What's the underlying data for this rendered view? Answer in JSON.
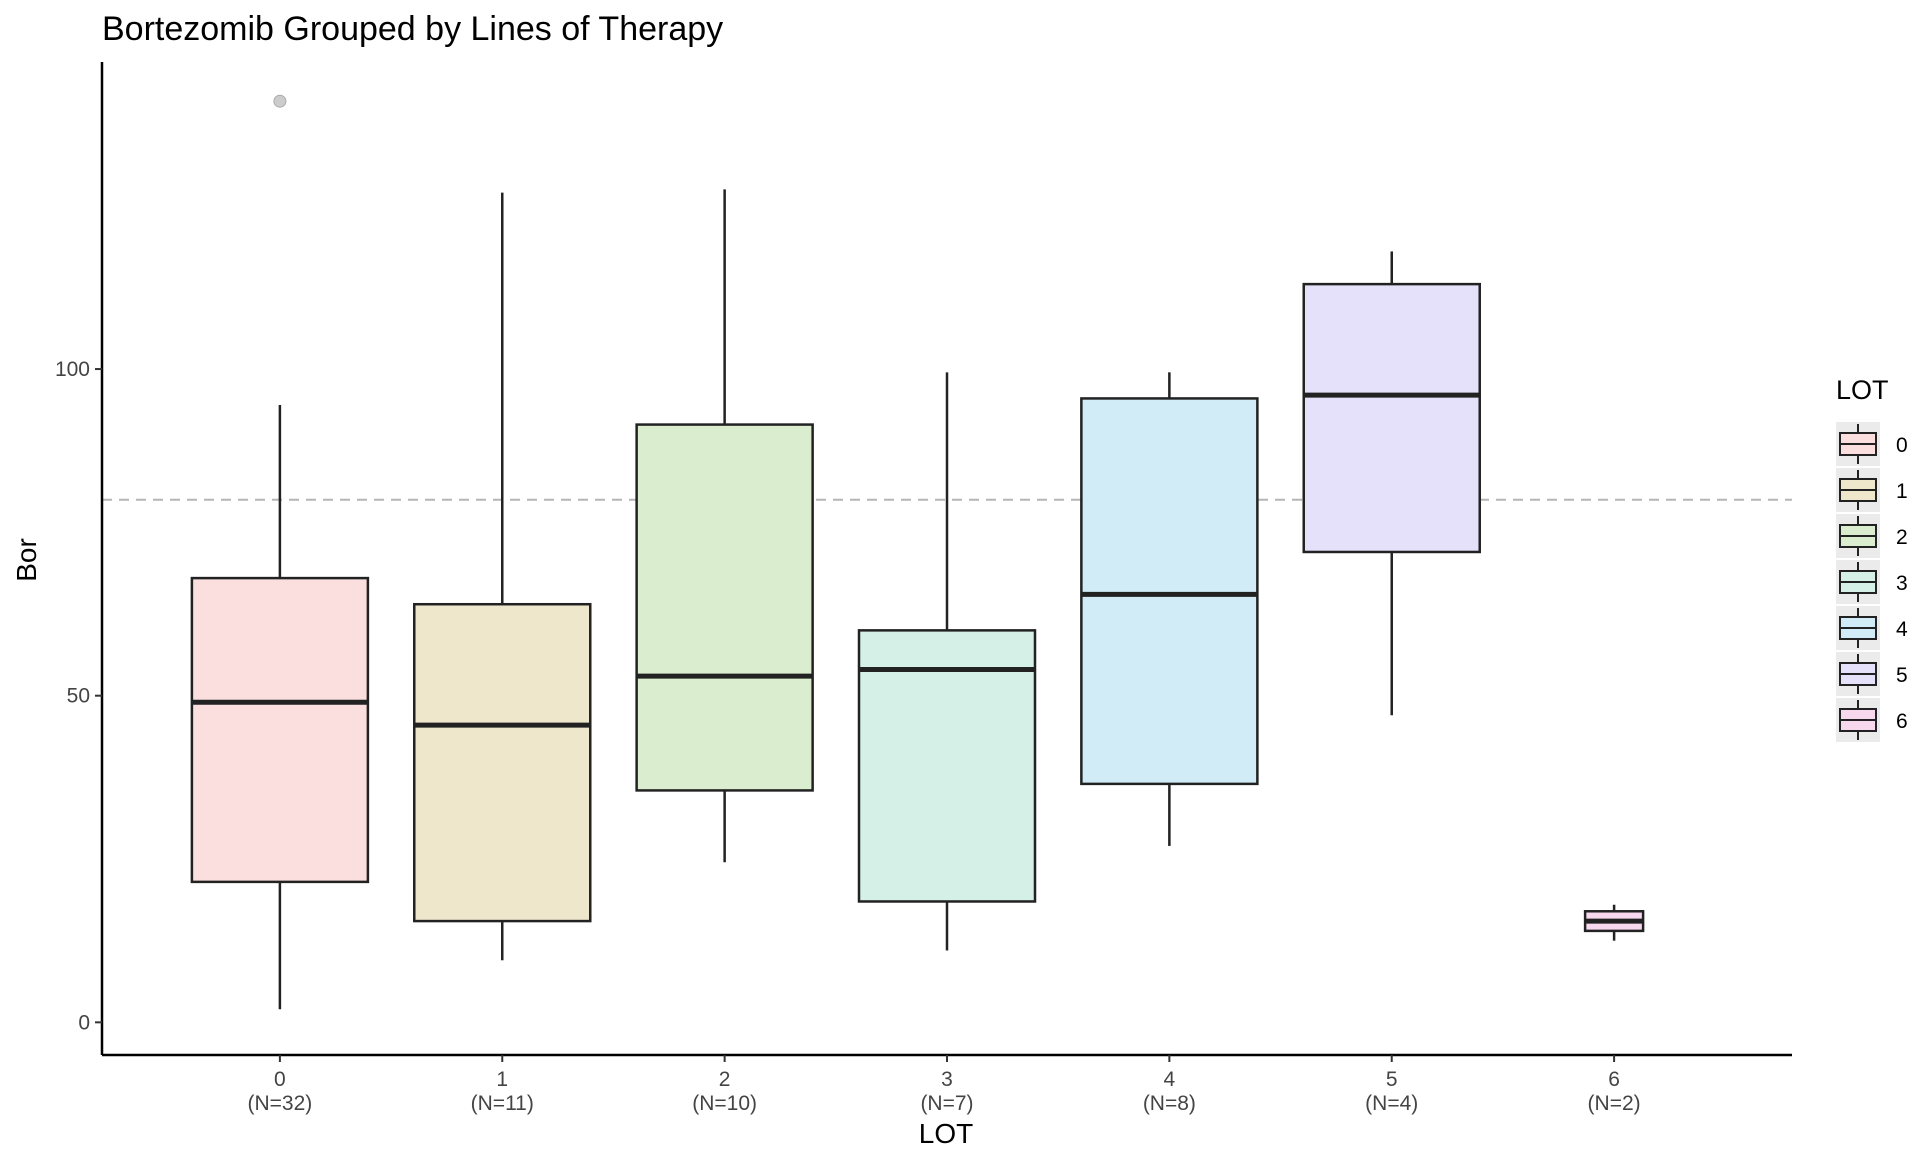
{
  "chart_data": {
    "type": "boxplot",
    "title": "Bortezomib Grouped by Lines of Therapy",
    "xlabel": "LOT",
    "ylabel": "Bor",
    "ylim": [
      -5,
      147
    ],
    "yticks": [
      0,
      50,
      100
    ],
    "reference_line": 80,
    "legend": {
      "title": "LOT",
      "placement": "right"
    },
    "categories": [
      "0",
      "1",
      "2",
      "3",
      "4",
      "5",
      "6"
    ],
    "n_labels": [
      "(N=32)",
      "(N=11)",
      "(N=10)",
      "(N=7)",
      "(N=8)",
      "(N=4)",
      "(N=2)"
    ],
    "groups": [
      {
        "name": "0",
        "n": 32,
        "min": 2,
        "q1": 21.5,
        "median": 49,
        "q3": 68,
        "max": 94.5,
        "outliers": [
          141
        ],
        "color": "#fbdede"
      },
      {
        "name": "1",
        "n": 11,
        "min": 9.5,
        "q1": 15.5,
        "median": 45.5,
        "q3": 64,
        "max": 127,
        "outliers": [],
        "color": "#efe7cc"
      },
      {
        "name": "2",
        "n": 10,
        "min": 24.5,
        "q1": 35.5,
        "median": 53,
        "q3": 91.5,
        "max": 127.5,
        "outliers": [],
        "color": "#daedcf"
      },
      {
        "name": "3",
        "n": 7,
        "min": 11,
        "q1": 18.5,
        "median": 54,
        "q3": 60,
        "max": 99.5,
        "outliers": [],
        "color": "#d4f0e7"
      },
      {
        "name": "4",
        "n": 8,
        "min": 27,
        "q1": 36.5,
        "median": 65.5,
        "q3": 95.5,
        "max": 99.5,
        "outliers": [],
        "color": "#d2ecf7"
      },
      {
        "name": "5",
        "n": 4,
        "min": 47,
        "q1": 72,
        "median": 96,
        "q3": 113,
        "max": 118,
        "outliers": [],
        "color": "#e6e1fb"
      },
      {
        "name": "6",
        "n": 2,
        "min": 12.5,
        "q1": 14,
        "median": 15.5,
        "q3": 17,
        "max": 18,
        "outliers": [],
        "color": "#f8d8ee"
      }
    ]
  }
}
